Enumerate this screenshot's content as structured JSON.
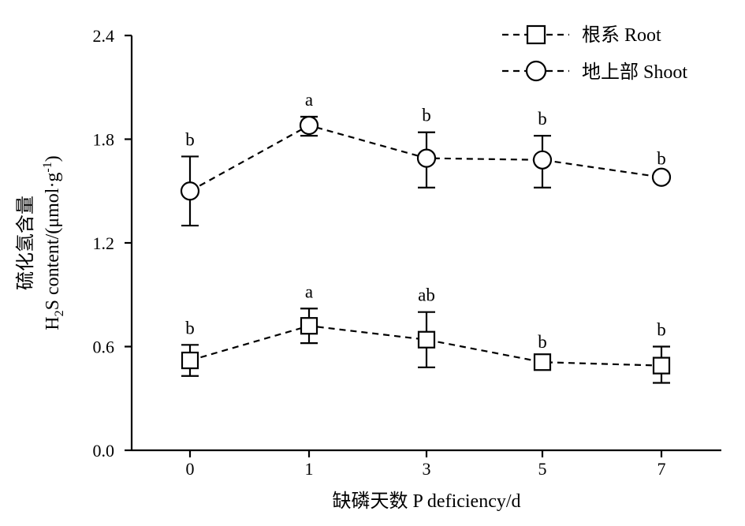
{
  "chart_data": {
    "type": "line",
    "x_categories": [
      "0",
      "1",
      "3",
      "5",
      "7"
    ],
    "xlabel": "缺磷天数  P deficiency/d",
    "ylabel_cn": "硫化氢含量",
    "ylabel_en": {
      "h": "H",
      "sub2": "2",
      "s_content": "S content/(μmol·g",
      "sup": "-1",
      "close": ")"
    },
    "ylim": [
      0.0,
      2.4
    ],
    "yticks": [
      "0.0",
      "0.6",
      "1.2",
      "1.8",
      "2.4"
    ],
    "ytick_values": [
      0.0,
      0.6,
      1.2,
      1.8,
      2.4
    ],
    "legend_position": "top-right",
    "series": [
      {
        "name": "根系 Root",
        "marker": "square",
        "values": [
          0.52,
          0.72,
          0.64,
          0.51,
          0.49
        ],
        "err_upper": [
          0.61,
          0.82,
          0.8,
          0.53,
          0.6
        ],
        "err_lower": [
          0.43,
          0.62,
          0.48,
          0.49,
          0.39
        ],
        "sig": [
          "b",
          "a",
          "ab",
          "b",
          "b"
        ]
      },
      {
        "name": "地上部  Shoot",
        "marker": "circle",
        "values": [
          1.5,
          1.88,
          1.69,
          1.68,
          1.58
        ],
        "err_upper": [
          1.7,
          1.93,
          1.84,
          1.82,
          1.59
        ],
        "err_lower": [
          1.3,
          1.82,
          1.52,
          1.52,
          1.57
        ],
        "sig": [
          "b",
          "a",
          "b",
          "b",
          "b"
        ]
      }
    ]
  }
}
